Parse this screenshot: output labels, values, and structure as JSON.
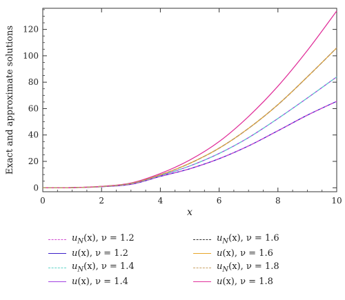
{
  "chart_data": {
    "type": "line",
    "ylabel": "Exact and approximate solutions",
    "xlabel": "x",
    "xlim": [
      0,
      10
    ],
    "ylim": [
      -3,
      136
    ],
    "xticks": [
      0,
      2,
      4,
      6,
      8,
      10
    ],
    "yticks": [
      0,
      20,
      40,
      60,
      80,
      100,
      120
    ],
    "grid": false,
    "legend_position": "bottom",
    "x": [
      0,
      1,
      2,
      3,
      4,
      5,
      6,
      7,
      8,
      9,
      10
    ],
    "series": [
      {
        "name": "u_N(x), ν = 1.2",
        "label_main": "u",
        "label_sub": "N",
        "label_rest": "(x), ν = 1.2",
        "color": "#d04ad0",
        "dashed": true,
        "values": [
          0,
          0.1,
          0.8,
          2.6,
          8.6,
          14.4,
          22.0,
          31.7,
          43.2,
          55.0,
          65.5
        ]
      },
      {
        "name": "u(x), ν = 1.2",
        "label_main": "u",
        "label_sub": "",
        "label_rest": "(x), ν = 1.2",
        "color": "#3a1fc9",
        "dashed": false,
        "values": [
          0,
          0.1,
          0.8,
          2.6,
          8.6,
          14.4,
          22.0,
          31.7,
          43.2,
          55.0,
          65.5
        ]
      },
      {
        "name": "u_N(x), ν = 1.4",
        "label_main": "u",
        "label_sub": "N",
        "label_rest": "(x), ν = 1.4",
        "color": "#5fd3c8",
        "dashed": true,
        "values": [
          0,
          0.1,
          0.9,
          3.0,
          9.2,
          16.5,
          26.0,
          38.0,
          52.5,
          68.0,
          84.0
        ]
      },
      {
        "name": "u(x), ν = 1.4",
        "label_main": "u",
        "label_sub": "",
        "label_rest": "(x), ν = 1.4",
        "color": "#a13fe0",
        "dashed": false,
        "values": [
          0,
          0.1,
          0.9,
          3.0,
          9.2,
          16.5,
          26.0,
          38.0,
          52.5,
          68.0,
          84.0
        ]
      },
      {
        "name": "u_N(x), ν = 1.6",
        "label_main": "u",
        "label_sub": "N",
        "label_rest": "(x), ν = 1.6",
        "color": "#333333",
        "dashed": true,
        "values": [
          0,
          0.1,
          1.0,
          3.3,
          9.8,
          18.5,
          30.0,
          45.0,
          63.0,
          84.0,
          106.0
        ]
      },
      {
        "name": "u(x), ν = 1.6",
        "label_main": "u",
        "label_sub": "",
        "label_rest": "(x), ν = 1.6",
        "color": "#e8a628",
        "dashed": false,
        "values": [
          0,
          0.1,
          1.0,
          3.3,
          9.8,
          18.5,
          30.0,
          45.0,
          63.0,
          84.0,
          106.0
        ]
      },
      {
        "name": "u_N(x), ν = 1.8",
        "label_main": "u",
        "label_sub": "N",
        "label_rest": "(x), ν = 1.8",
        "color": "#c9a063",
        "dashed": true,
        "values": [
          0,
          0.1,
          1.0,
          3.3,
          9.8,
          18.5,
          30.0,
          45.0,
          63.0,
          84.0,
          106.0
        ]
      },
      {
        "name": "u(x), ν = 1.8",
        "label_main": "u",
        "label_sub": "",
        "label_rest": "(x), ν = 1.8",
        "color": "#e0309a",
        "dashed": false,
        "values": [
          0,
          0.1,
          1.1,
          3.6,
          10.8,
          21.0,
          35.0,
          54.0,
          77.0,
          104.0,
          134.0
        ]
      }
    ]
  }
}
